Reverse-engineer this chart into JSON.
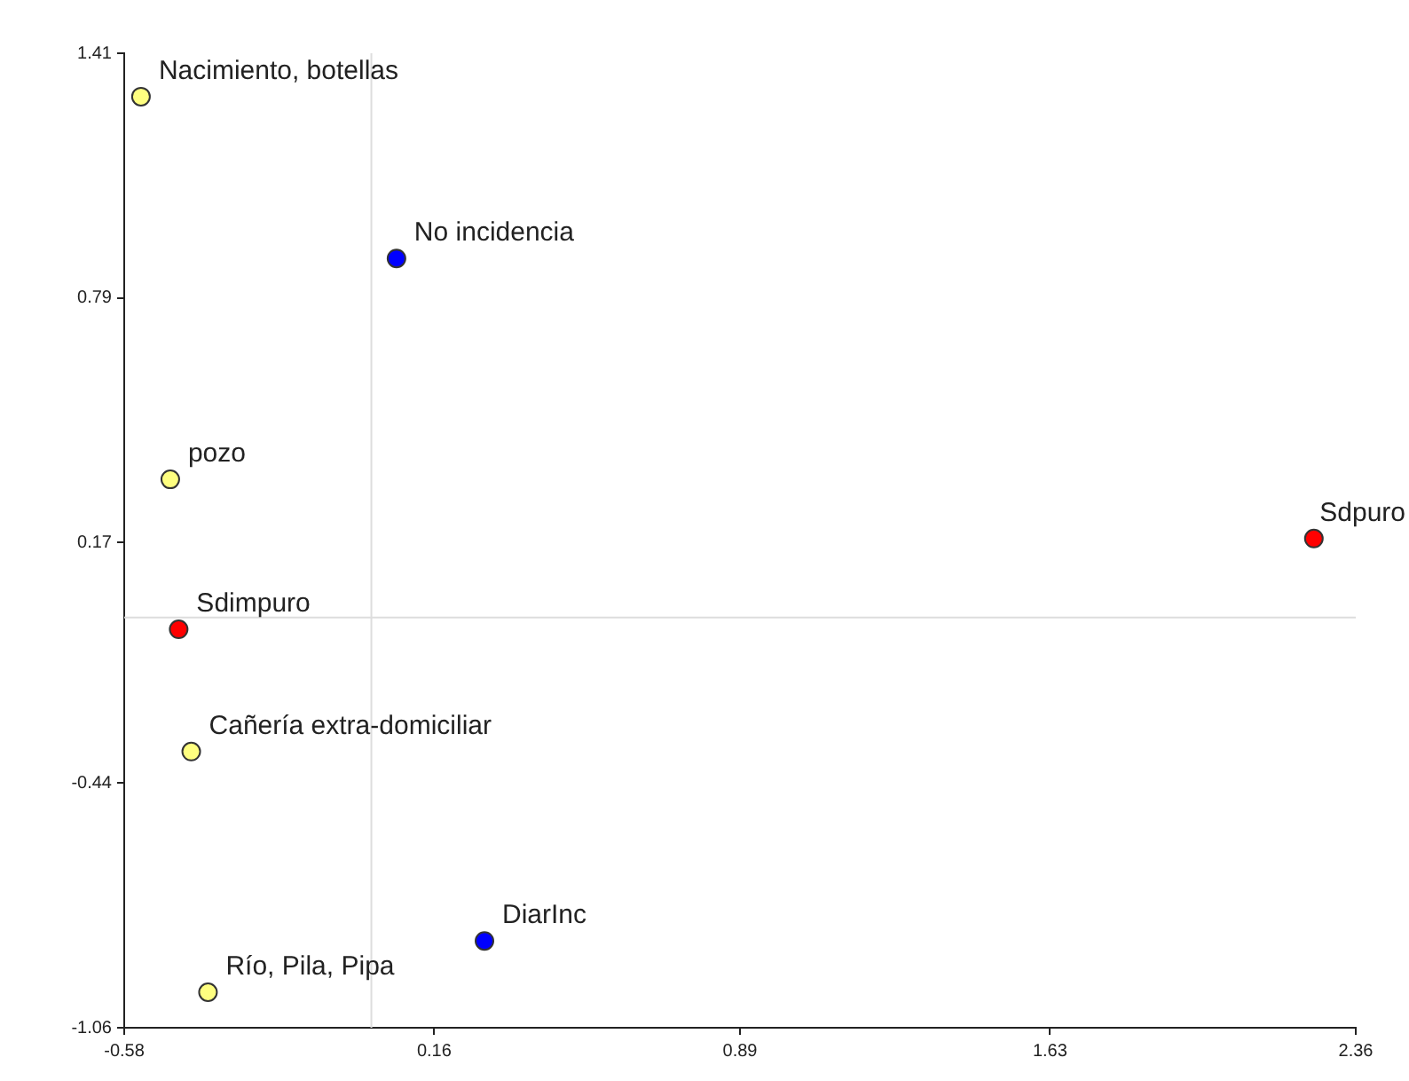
{
  "chart_data": {
    "type": "scatter",
    "marker": "circle",
    "grid": false,
    "legend": false,
    "xlim": [
      -0.58,
      2.36
    ],
    "xticks": [
      -0.58,
      0.16,
      0.89,
      1.63,
      2.36
    ],
    "ylim": [
      -1.06,
      1.41
    ],
    "yticks": [
      -1.06,
      -0.44,
      0.17,
      0.79,
      1.41
    ],
    "series": [
      {
        "color": "#ffff80",
        "x": [
          -0.54,
          -0.47,
          -0.42,
          -0.38
        ],
        "values": [
          1.3,
          0.33,
          -0.36,
          -0.97
        ]
      },
      {
        "color": "#0000ff",
        "x": [
          0.07,
          0.28
        ],
        "values": [
          0.89,
          -0.84
        ]
      },
      {
        "color": "#ff0000",
        "x": [
          2.26,
          -0.45
        ],
        "values": [
          0.18,
          -0.05
        ]
      }
    ],
    "ref_lines": [
      {
        "axis": "x",
        "value": 0.01,
        "color": "#dddddd"
      },
      {
        "axis": "y",
        "value": -0.02,
        "color": "#dddddd"
      }
    ],
    "annotations": [
      {
        "text": "Nacimiento, botellas",
        "x": -0.54,
        "y": 1.3
      },
      {
        "text": "pozo",
        "x": -0.47,
        "y": 0.33
      },
      {
        "text": "Cañería extra-domiciliar",
        "x": -0.42,
        "y": -0.36
      },
      {
        "text": "Río, Pila, Pipa",
        "x": -0.38,
        "y": -0.97
      },
      {
        "text": "No incidencia",
        "x": 0.07,
        "y": 0.89
      },
      {
        "text": "DiarInc",
        "x": 0.28,
        "y": -0.84
      },
      {
        "text": "Sdpuro",
        "x": 2.26,
        "y": 0.18
      },
      {
        "text": "Sdimpuro",
        "x": -0.45,
        "y": -0.05
      }
    ]
  }
}
